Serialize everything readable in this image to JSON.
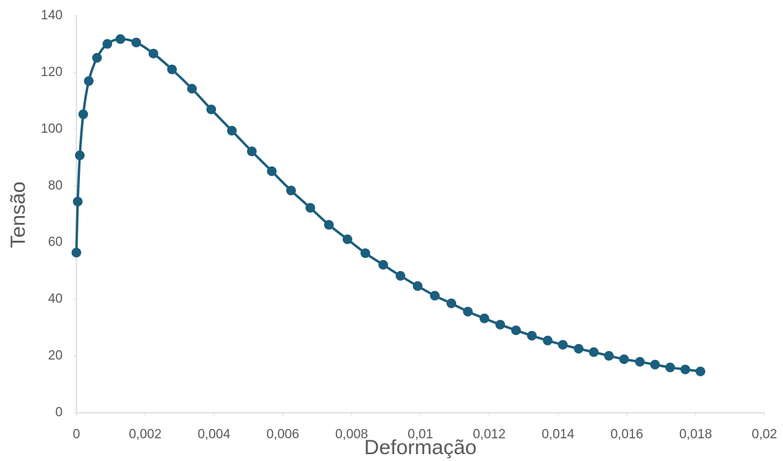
{
  "chart_data": {
    "type": "scatter",
    "x_label": "Deformação",
    "y_label": "Tensão",
    "color": "#1b5e7d",
    "smooth": true,
    "x": [
      0,
      4e-05,
      0.0001,
      0.0002,
      0.00036,
      0.0006,
      0.0009,
      0.00128,
      0.00174,
      0.00224,
      0.00278,
      0.00336,
      0.00392,
      0.00452,
      0.0051,
      0.00568,
      0.00624,
      0.0068,
      0.00734,
      0.00788,
      0.0084,
      0.00892,
      0.00942,
      0.00992,
      0.01042,
      0.0109,
      0.01138,
      0.01186,
      0.01232,
      0.01278,
      0.01324,
      0.0137,
      0.01414,
      0.0146,
      0.01504,
      0.01548,
      0.01592,
      0.01638,
      0.01682,
      0.01726,
      0.0177,
      0.01814
    ],
    "values": [
      56.5,
      74.5,
      90.8,
      105.3,
      117,
      125.2,
      130.1,
      131.8,
      130.6,
      126.7,
      121.1,
      114.3,
      107,
      99.5,
      92.2,
      85.2,
      78.4,
      72.3,
      66.3,
      61.2,
      56.3,
      52.2,
      48.3,
      44.7,
      41.3,
      38.6,
      35.7,
      33.3,
      31.1,
      29.1,
      27.2,
      25.5,
      24,
      22.6,
      21.4,
      20.1,
      18.9,
      18,
      17,
      16,
      15.3,
      14.6
    ],
    "xlim": [
      0,
      0.02
    ],
    "xticks": [
      0,
      {
        "value": 0.002,
        "label": "0,002"
      },
      {
        "value": 0.004,
        "label": "0,004"
      },
      {
        "value": 0.006,
        "label": "0,006"
      },
      {
        "value": 0.008,
        "label": "0,008"
      },
      {
        "value": 0.01,
        "label": "0,01"
      },
      {
        "value": 0.012,
        "label": "0,012"
      },
      {
        "value": 0.014,
        "label": "0,014"
      },
      {
        "value": 0.016,
        "label": "0,016"
      },
      {
        "value": 0.018,
        "label": "0,018"
      },
      {
        "value": 0.02,
        "label": "0,02"
      }
    ],
    "ylim": [
      0,
      140
    ],
    "yticks": [
      0,
      20,
      40,
      60,
      80,
      100,
      120,
      140
    ]
  }
}
